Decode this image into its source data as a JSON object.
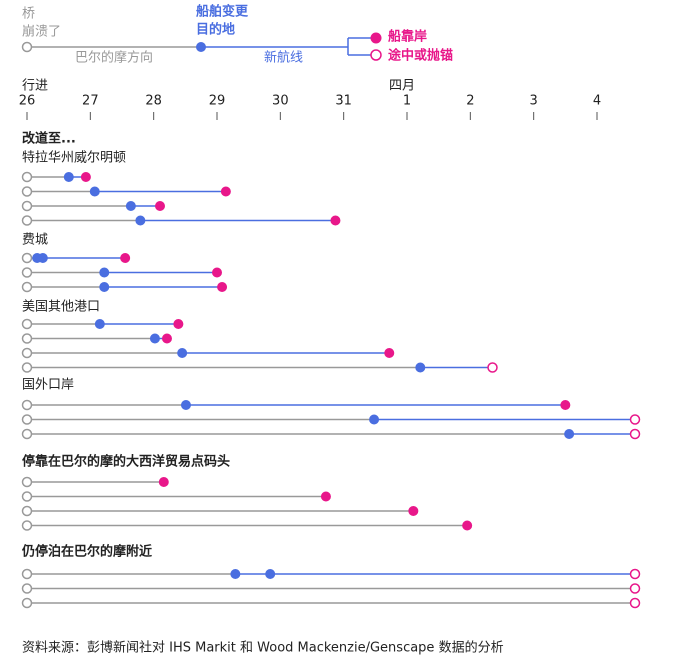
{
  "chart_data": {
    "type": "dumbbell",
    "legend": {
      "start_label": [
        "桥",
        "崩溃了"
      ],
      "start_line_label": "巴尔的摩方向",
      "reroute_label": [
        "船舶变更",
        "目的地"
      ],
      "reroute_line_label": "新航线",
      "docked_label": "船靠岸",
      "enroute_label": "途中或抛锚"
    },
    "x_title": "行进",
    "month_label": "四月",
    "xlim": [
      0,
      9.6
    ],
    "xticks": [
      {
        "value": 0,
        "label": "26"
      },
      {
        "value": 1,
        "label": "27"
      },
      {
        "value": 2,
        "label": "28"
      },
      {
        "value": 3,
        "label": "29"
      },
      {
        "value": 4,
        "label": "30"
      },
      {
        "value": 5,
        "label": "31"
      },
      {
        "value": 6,
        "label": "1"
      },
      {
        "value": 7,
        "label": "2"
      },
      {
        "value": 8,
        "label": "3"
      },
      {
        "value": 9,
        "label": "4"
      }
    ],
    "heading": "改道至...",
    "groups": [
      {
        "name": "特拉华州威尔明顿",
        "emphasis": false,
        "rows": [
          {
            "reroutes": [
              0.66
            ],
            "end": 0.93,
            "docked": true
          },
          {
            "reroutes": [
              1.07
            ],
            "end": 3.14,
            "docked": true
          },
          {
            "reroutes": [
              1.64
            ],
            "end": 2.1,
            "docked": true
          },
          {
            "reroutes": [
              1.79
            ],
            "end": 4.87,
            "docked": true
          }
        ]
      },
      {
        "name": "费城",
        "emphasis": false,
        "rows": [
          {
            "reroutes": [
              0.16,
              0.25
            ],
            "end": 1.55,
            "docked": true
          },
          {
            "reroutes": [
              1.22
            ],
            "end": 3.0,
            "docked": true
          },
          {
            "reroutes": [
              1.22
            ],
            "end": 3.08,
            "docked": true
          }
        ]
      },
      {
        "name": "美国其他港口",
        "emphasis": false,
        "rows": [
          {
            "reroutes": [
              1.15
            ],
            "end": 2.39,
            "docked": true
          },
          {
            "reroutes": [
              2.02
            ],
            "end": 2.21,
            "docked": true
          },
          {
            "reroutes": [
              2.45
            ],
            "end": 5.72,
            "docked": true
          },
          {
            "reroutes": [
              6.21
            ],
            "end": 7.35,
            "docked": false
          }
        ]
      },
      {
        "name": "国外口岸",
        "emphasis": false,
        "rows": [
          {
            "reroutes": [
              2.51
            ],
            "end": 8.5,
            "docked": true
          },
          {
            "reroutes": [
              5.48
            ],
            "end": 9.6,
            "docked": false
          },
          {
            "reroutes": [
              8.56
            ],
            "end": 9.6,
            "docked": false
          }
        ]
      },
      {
        "name": "停靠在巴尔的摩的大西洋贸易点码头",
        "emphasis": true,
        "rows": [
          {
            "reroutes": [],
            "end": 2.16,
            "docked": true
          },
          {
            "reroutes": [],
            "end": 4.72,
            "docked": true
          },
          {
            "reroutes": [],
            "end": 6.1,
            "docked": true
          },
          {
            "reroutes": [],
            "end": 6.95,
            "docked": true
          }
        ]
      },
      {
        "name": "仍停泊在巴尔的摩附近",
        "emphasis": true,
        "rows": [
          {
            "reroutes": [
              3.29,
              3.84
            ],
            "end": 9.6,
            "docked": false
          },
          {
            "reroutes": [],
            "end": 9.6,
            "docked": false
          },
          {
            "reroutes": [],
            "end": 9.6,
            "docked": false
          }
        ]
      }
    ],
    "source": "资料来源：彭博新闻社对 IHS Markit 和 Wood Mackenzie/Genscape 数据的分析"
  }
}
